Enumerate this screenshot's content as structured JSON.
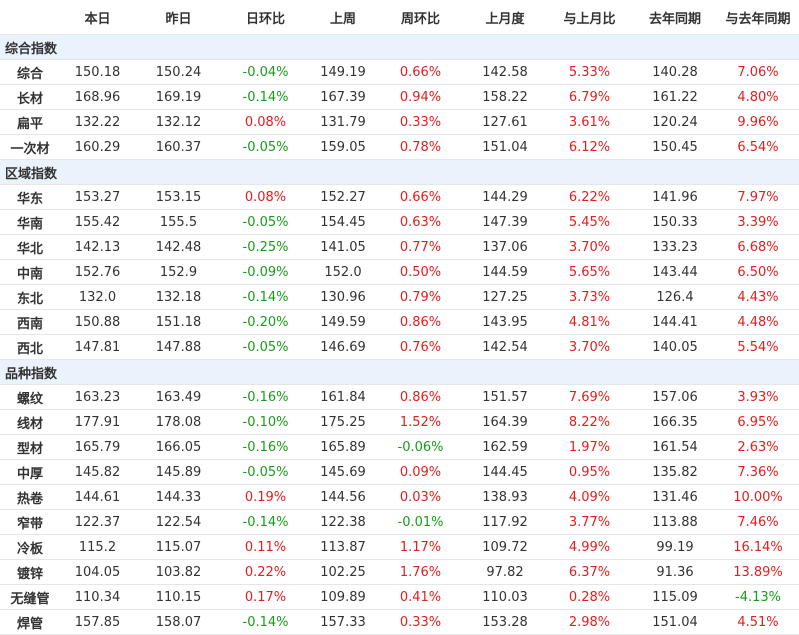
{
  "headers": [
    "",
    "本日",
    "昨日",
    "日环比",
    "上周",
    "周环比",
    "上月度",
    "与上月比",
    "去年同期",
    "与去年同期"
  ],
  "colors": {
    "up": "#e02020",
    "down": "#1a9b1a",
    "section_bg": "#eaf3fb"
  },
  "sections": [
    {
      "title": "综合指数",
      "rows": [
        [
          "综合",
          "150.18",
          "150.24",
          "-0.04%",
          "149.19",
          "0.66%",
          "142.58",
          "5.33%",
          "140.28",
          "7.06%"
        ],
        [
          "长材",
          "168.96",
          "169.19",
          "-0.14%",
          "167.39",
          "0.94%",
          "158.22",
          "6.79%",
          "161.22",
          "4.80%"
        ],
        [
          "扁平",
          "132.22",
          "132.12",
          "0.08%",
          "131.79",
          "0.33%",
          "127.61",
          "3.61%",
          "120.24",
          "9.96%"
        ],
        [
          "一次材",
          "160.29",
          "160.37",
          "-0.05%",
          "159.05",
          "0.78%",
          "151.04",
          "6.12%",
          "150.45",
          "6.54%"
        ]
      ]
    },
    {
      "title": "区域指数",
      "rows": [
        [
          "华东",
          "153.27",
          "153.15",
          "0.08%",
          "152.27",
          "0.66%",
          "144.29",
          "6.22%",
          "141.96",
          "7.97%"
        ],
        [
          "华南",
          "155.42",
          "155.5",
          "-0.05%",
          "154.45",
          "0.63%",
          "147.39",
          "5.45%",
          "150.33",
          "3.39%"
        ],
        [
          "华北",
          "142.13",
          "142.48",
          "-0.25%",
          "141.05",
          "0.77%",
          "137.06",
          "3.70%",
          "133.23",
          "6.68%"
        ],
        [
          "中南",
          "152.76",
          "152.9",
          "-0.09%",
          "152.0",
          "0.50%",
          "144.59",
          "5.65%",
          "143.44",
          "6.50%"
        ],
        [
          "东北",
          "132.0",
          "132.18",
          "-0.14%",
          "130.96",
          "0.79%",
          "127.25",
          "3.73%",
          "126.4",
          "4.43%"
        ],
        [
          "西南",
          "150.88",
          "151.18",
          "-0.20%",
          "149.59",
          "0.86%",
          "143.95",
          "4.81%",
          "144.41",
          "4.48%"
        ],
        [
          "西北",
          "147.81",
          "147.88",
          "-0.05%",
          "146.69",
          "0.76%",
          "142.54",
          "3.70%",
          "140.05",
          "5.54%"
        ]
      ]
    },
    {
      "title": "品种指数",
      "rows": [
        [
          "螺纹",
          "163.23",
          "163.49",
          "-0.16%",
          "161.84",
          "0.86%",
          "151.57",
          "7.69%",
          "157.06",
          "3.93%"
        ],
        [
          "线材",
          "177.91",
          "178.08",
          "-0.10%",
          "175.25",
          "1.52%",
          "164.39",
          "8.22%",
          "166.35",
          "6.95%"
        ],
        [
          "型材",
          "165.79",
          "166.05",
          "-0.16%",
          "165.89",
          "-0.06%",
          "162.59",
          "1.97%",
          "161.54",
          "2.63%"
        ],
        [
          "中厚",
          "145.82",
          "145.89",
          "-0.05%",
          "145.69",
          "0.09%",
          "144.45",
          "0.95%",
          "135.82",
          "7.36%"
        ],
        [
          "热卷",
          "144.61",
          "144.33",
          "0.19%",
          "144.56",
          "0.03%",
          "138.93",
          "4.09%",
          "131.46",
          "10.00%"
        ],
        [
          "窄带",
          "122.37",
          "122.54",
          "-0.14%",
          "122.38",
          "-0.01%",
          "117.92",
          "3.77%",
          "113.88",
          "7.46%"
        ],
        [
          "冷板",
          "115.2",
          "115.07",
          "0.11%",
          "113.87",
          "1.17%",
          "109.72",
          "4.99%",
          "99.19",
          "16.14%"
        ],
        [
          "镀锌",
          "104.05",
          "103.82",
          "0.22%",
          "102.25",
          "1.76%",
          "97.82",
          "6.37%",
          "91.36",
          "13.89%"
        ],
        [
          "无缝管",
          "110.34",
          "110.15",
          "0.17%",
          "109.89",
          "0.41%",
          "110.03",
          "0.28%",
          "115.09",
          "-4.13%"
        ],
        [
          "焊管",
          "157.85",
          "158.07",
          "-0.14%",
          "157.33",
          "0.33%",
          "153.28",
          "2.98%",
          "151.04",
          "4.51%"
        ]
      ]
    }
  ]
}
